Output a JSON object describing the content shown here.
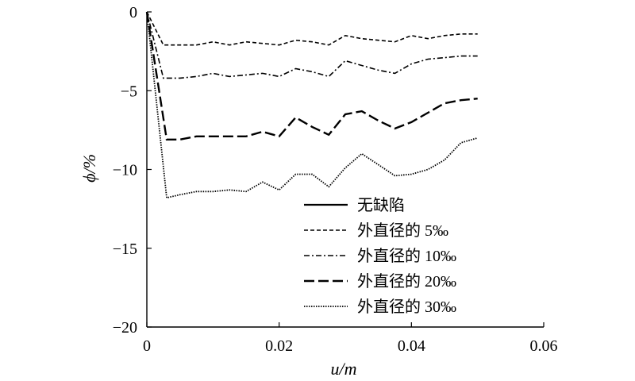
{
  "chart_data": {
    "type": "line",
    "xlabel": "u/m",
    "ylabel": "ϕ/%",
    "xlim": [
      0,
      0.06
    ],
    "ylim": [
      -20,
      0
    ],
    "xticks": [
      0,
      0.02,
      0.04,
      0.06
    ],
    "xtick_labels": [
      "0",
      "0.02",
      "0.04",
      "0.06"
    ],
    "yticks": [
      0,
      -5,
      -10,
      -15,
      -20
    ],
    "ytick_labels": [
      "0",
      "−5",
      "−10",
      "−15",
      "−20"
    ],
    "grid": false,
    "legend_position": "bottom-center",
    "series": [
      {
        "name": "无缺陷",
        "style": "solid",
        "x": [],
        "y": []
      },
      {
        "name": "外直径的 5‰",
        "style": "dashed-short",
        "x": [
          0,
          0.0025,
          0.005,
          0.0075,
          0.01,
          0.0125,
          0.015,
          0.0175,
          0.02,
          0.0225,
          0.025,
          0.0275,
          0.03,
          0.0325,
          0.035,
          0.0375,
          0.04,
          0.0425,
          0.045,
          0.0475,
          0.05
        ],
        "y": [
          0,
          -2.1,
          -2.1,
          -2.1,
          -1.9,
          -2.1,
          -1.9,
          -2.0,
          -2.1,
          -1.8,
          -1.9,
          -2.1,
          -1.5,
          -1.7,
          -1.8,
          -1.9,
          -1.5,
          -1.7,
          -1.5,
          -1.4,
          -1.4
        ]
      },
      {
        "name": "外直径的 10‰",
        "style": "dash-dot",
        "x": [
          0,
          0.0025,
          0.005,
          0.0075,
          0.01,
          0.0125,
          0.015,
          0.0175,
          0.02,
          0.0225,
          0.025,
          0.0275,
          0.03,
          0.0325,
          0.035,
          0.0375,
          0.04,
          0.0425,
          0.045,
          0.0475,
          0.05
        ],
        "y": [
          0,
          -4.2,
          -4.2,
          -4.1,
          -3.9,
          -4.1,
          -4.0,
          -3.9,
          -4.1,
          -3.6,
          -3.8,
          -4.1,
          -3.1,
          -3.4,
          -3.7,
          -3.9,
          -3.3,
          -3.0,
          -2.9,
          -2.8,
          -2.8
        ]
      },
      {
        "name": "外直径的 20‰",
        "style": "dashed-long",
        "x": [
          0,
          0.003,
          0.005,
          0.0075,
          0.01,
          0.0125,
          0.015,
          0.0175,
          0.02,
          0.0225,
          0.025,
          0.0275,
          0.03,
          0.0325,
          0.035,
          0.0375,
          0.04,
          0.0425,
          0.045,
          0.0475,
          0.05
        ],
        "y": [
          0,
          -8.1,
          -8.1,
          -7.9,
          -7.9,
          -7.9,
          -7.9,
          -7.6,
          -7.9,
          -6.7,
          -7.3,
          -7.8,
          -6.5,
          -6.3,
          -6.9,
          -7.4,
          -7.0,
          -6.4,
          -5.8,
          -5.6,
          -5.5
        ]
      },
      {
        "name": "外直径的 30‰",
        "style": "dotted",
        "x": [
          0,
          0.003,
          0.005,
          0.0075,
          0.01,
          0.0125,
          0.015,
          0.0175,
          0.02,
          0.0225,
          0.025,
          0.0275,
          0.03,
          0.0325,
          0.035,
          0.0375,
          0.04,
          0.0425,
          0.045,
          0.0475,
          0.05
        ],
        "y": [
          0,
          -11.8,
          -11.6,
          -11.4,
          -11.4,
          -11.3,
          -11.4,
          -10.8,
          -11.3,
          -10.3,
          -10.3,
          -11.1,
          -9.9,
          -9.0,
          -9.7,
          -10.4,
          -10.3,
          -10.0,
          -9.4,
          -8.3,
          -8.0
        ]
      }
    ]
  }
}
